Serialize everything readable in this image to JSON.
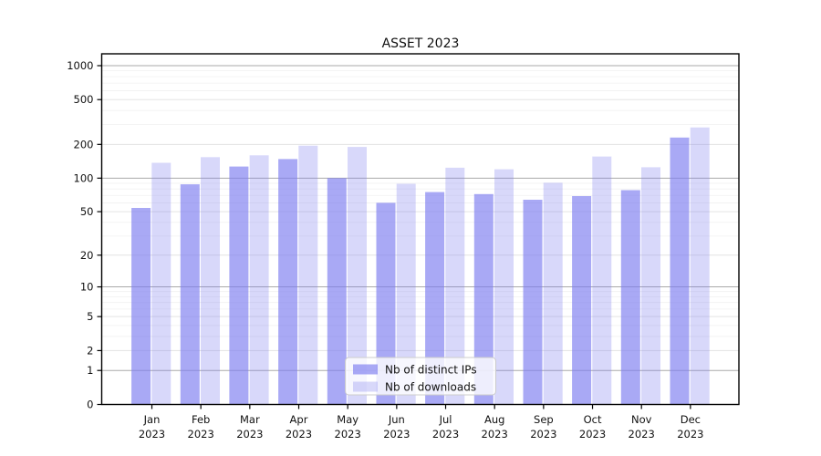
{
  "chart_data": {
    "type": "bar",
    "title": "ASSET 2023",
    "categories": [
      "Jan",
      "Feb",
      "Mar",
      "Apr",
      "May",
      "Jun",
      "Jul",
      "Aug",
      "Sep",
      "Oct",
      "Nov",
      "Dec"
    ],
    "category_year": "2023",
    "series": [
      {
        "name": "Nb of distinct IPs",
        "color": "#7d7df0",
        "opacity": 0.66,
        "values": [
          54,
          88,
          127,
          148,
          100,
          60,
          75,
          72,
          64,
          69,
          78,
          230
        ]
      },
      {
        "name": "Nb of downloads",
        "color": "#7d7df0",
        "opacity": 0.3,
        "values": [
          137,
          154,
          160,
          195,
          190,
          89,
          124,
          120,
          91,
          156,
          125,
          283
        ]
      }
    ],
    "xlabel": "",
    "ylabel": "",
    "yscale": "log1p",
    "yticks": [
      0,
      1,
      2,
      5,
      10,
      20,
      50,
      100,
      200,
      500,
      1000
    ],
    "ylim": [
      0,
      1000
    ],
    "grid": true,
    "grid_major_color": "#aaaaaa",
    "grid_mid_color": "#e3e3e3",
    "grid_minor_color": "#f1f1f1",
    "spine_color": "#000000",
    "legend_position": "bottom-center"
  }
}
